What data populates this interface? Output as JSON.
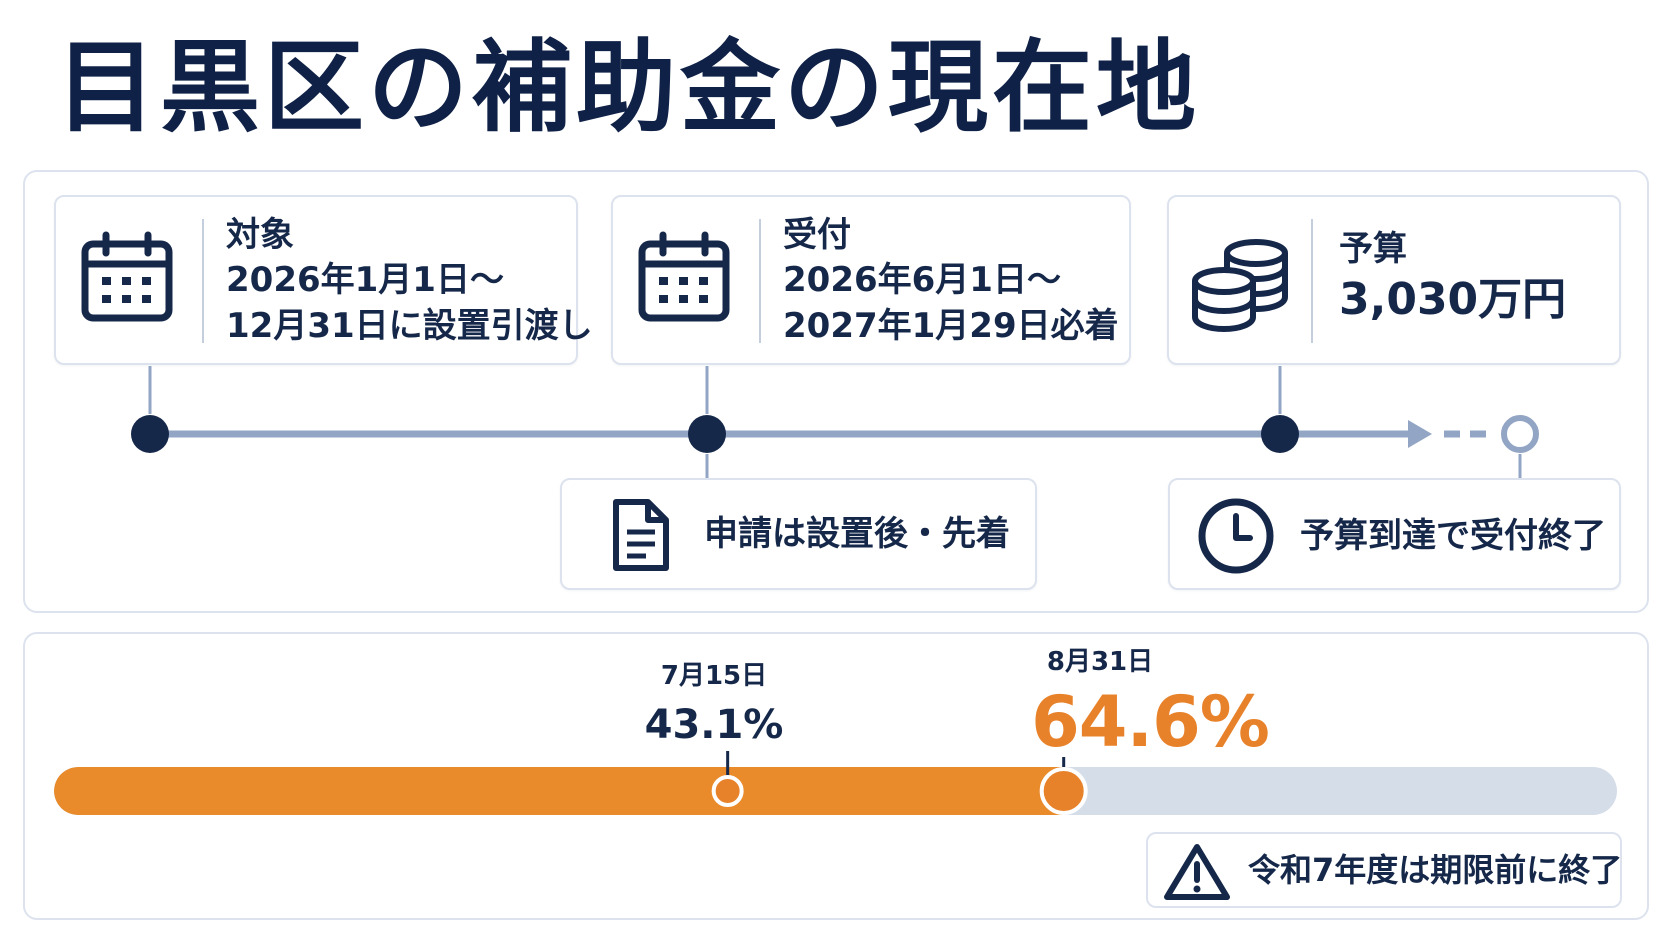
{
  "title": "目黒区の補助金の現在地",
  "cards": {
    "target": {
      "icon": "calendar-icon",
      "label": "対象",
      "line1": "2026年1月1日～",
      "line2": "12月31日に設置引渡し"
    },
    "reception": {
      "icon": "calendar-icon",
      "label": "受付",
      "line1": "2026年6月1日～",
      "line2": "2027年1月29日必着"
    },
    "budget": {
      "icon": "coins-icon",
      "label": "予算",
      "value": "3,030万円"
    }
  },
  "notes": {
    "apply": {
      "icon": "document-icon",
      "text": "申請は設置後・先着"
    },
    "end": {
      "icon": "clock-icon",
      "text": "予算到達で受付終了"
    }
  },
  "progress": {
    "value_percent": 64.6,
    "markers": [
      {
        "date": "7月15日",
        "percent_label": "43.1%",
        "percent": 43.1
      },
      {
        "date": "8月31日",
        "percent_label": "64.6%",
        "percent": 64.6
      }
    ],
    "warning": {
      "icon": "warning-icon",
      "text": "令和7年度は期限前に終了"
    }
  },
  "colors": {
    "navy": "#0f2146",
    "accent": "#e8822a",
    "track": "#d5dde9",
    "line": "#93a5c4"
  }
}
